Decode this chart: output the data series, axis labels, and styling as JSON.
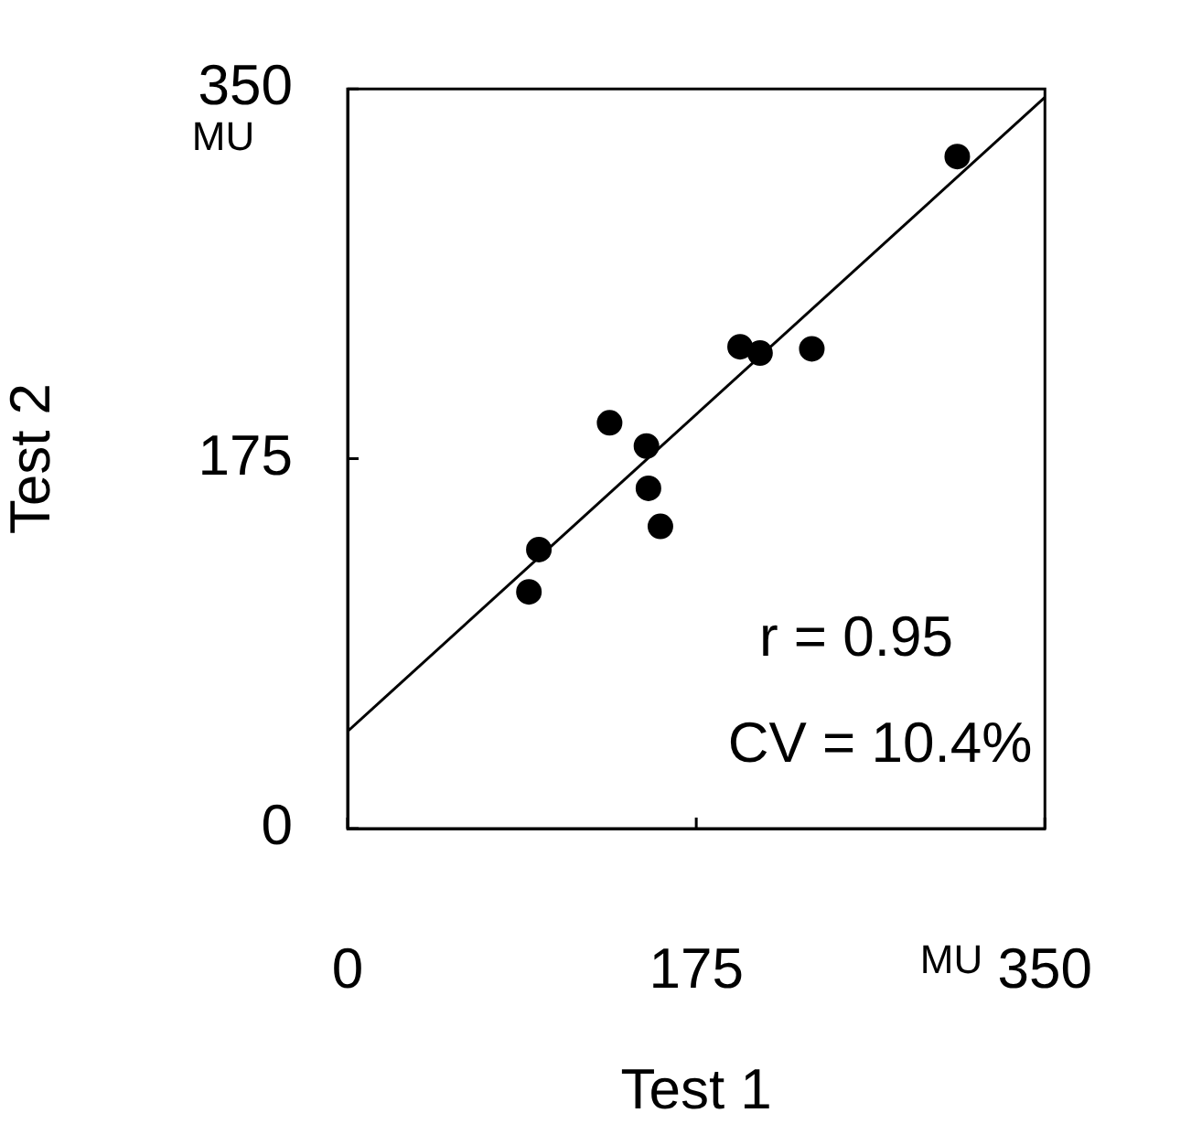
{
  "chart_data": {
    "type": "scatter",
    "xlabel": "Test 1",
    "ylabel": "Test 2",
    "annotations": [
      "MU",
      "MU",
      "r = 0.95",
      "CV = 10.4%"
    ],
    "xlim": [
      0,
      350
    ],
    "xticks": [
      0,
      175,
      350
    ],
    "ylim": [
      0,
      350
    ],
    "yticks": [
      0,
      175,
      350
    ],
    "grid": false,
    "legend": false,
    "marker": "circle",
    "series": [
      {
        "color": "#000000",
        "x": [
          306,
          197,
          207,
          233,
          131.5,
          150,
          151,
          157,
          96,
          91
        ],
        "values": [
          318,
          228,
          225,
          227,
          192,
          181,
          161,
          143,
          132,
          112
        ]
      },
      {
        "type": "line",
        "color": "#000000",
        "line_style": "solid",
        "marker": "none",
        "x": [
          0,
          350
        ],
        "values": [
          46,
          346
        ]
      }
    ]
  }
}
